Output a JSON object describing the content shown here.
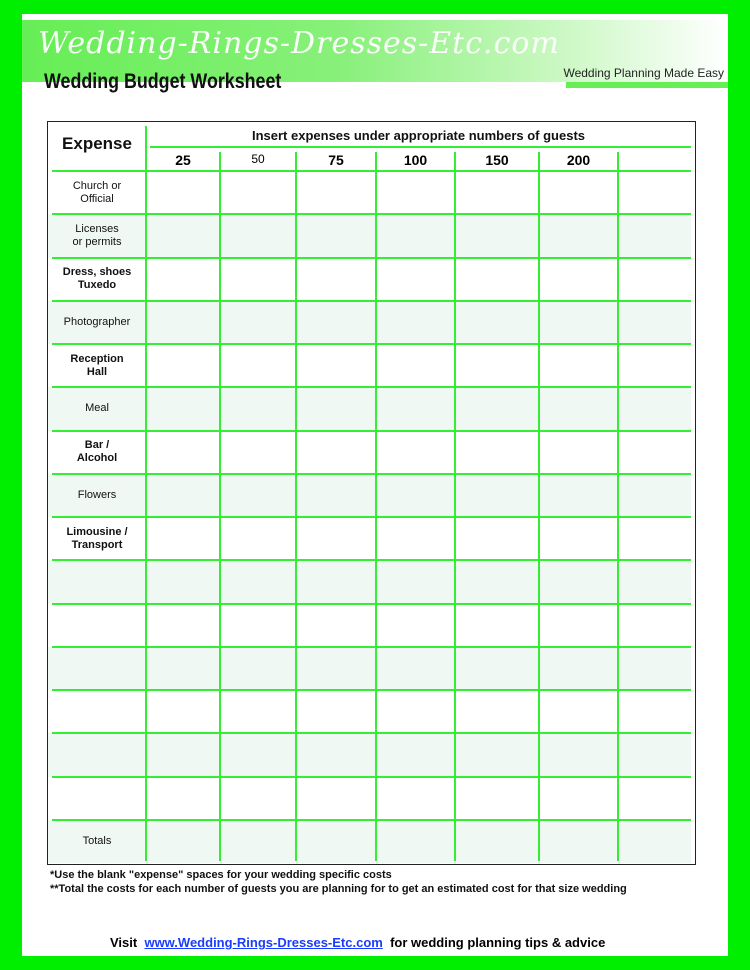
{
  "header": {
    "logo_text": "Wedding-Rings-Dresses-Etc.com",
    "title": "Wedding Budget Worksheet",
    "tagline": "Wedding Planning Made Easy"
  },
  "table": {
    "expense_header": "Expense",
    "guests_header": "Insert expenses under appropriate numbers of guests",
    "guest_counts": [
      "25",
      "50",
      "75",
      "100",
      "150",
      "200",
      ""
    ],
    "rows": [
      "Church or\nOfficial",
      "Licenses\nor permits",
      "Dress, shoes\nTuxedo",
      "Photographer",
      "Reception\nHall",
      "Meal",
      "Bar /\nAlcohol",
      "Flowers",
      "Limousine /\nTransport",
      "",
      "",
      "",
      "",
      "",
      "",
      "Totals"
    ]
  },
  "footnotes": [
    "*Use the blank \"expense\" spaces for your wedding specific costs",
    "**Total the costs for each number of guests you are planning for to get an estimated cost for that size wedding"
  ],
  "footer": {
    "visit": "Visit",
    "link": "www.Wedding-Rings-Dresses-Etc.com",
    "suffix": "for wedding planning tips & advice"
  },
  "colors": {
    "border": "#00ee00",
    "grid": "#33ee33",
    "link": "#1a3cff"
  }
}
